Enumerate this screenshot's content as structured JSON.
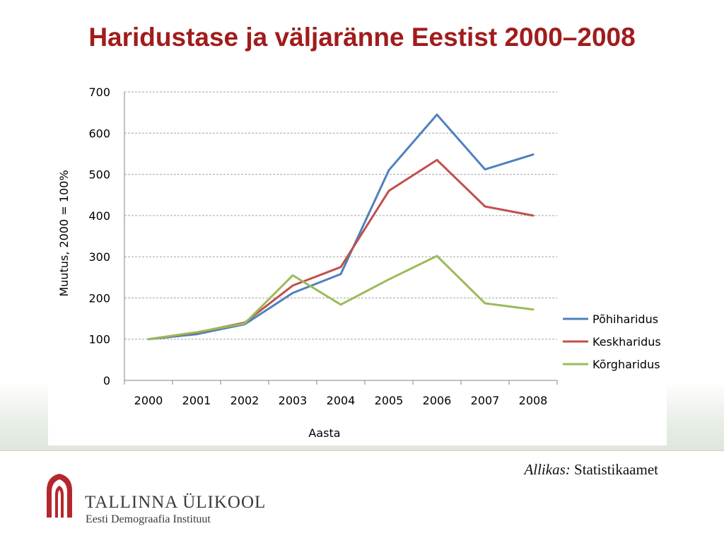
{
  "title": "Haridustase ja väljaränne Eestist 2000–2008",
  "source": {
    "label": "Allikas:",
    "value": "Statistikaamet"
  },
  "logo": {
    "name": "TALLINNA ÜLIKOOL",
    "subtitle": "Eesti Demograafia Instituut"
  },
  "chart_data": {
    "type": "line",
    "xlabel": "Aasta",
    "ylabel": "Muutus, 2000 = 100%",
    "categories": [
      "2000",
      "2001",
      "2002",
      "2003",
      "2004",
      "2005",
      "2006",
      "2007",
      "2008"
    ],
    "ylim": [
      0,
      700
    ],
    "yticks": [
      0,
      100,
      200,
      300,
      400,
      500,
      600,
      700
    ],
    "grid": true,
    "legend": "right",
    "series": [
      {
        "name": "Põhiharidus",
        "color": "#4f81bd",
        "values": [
          100,
          112,
          136,
          212,
          258,
          510,
          645,
          512,
          548
        ]
      },
      {
        "name": "Keskharidus",
        "color": "#c0504d",
        "values": [
          100,
          116,
          140,
          230,
          275,
          460,
          535,
          422,
          400
        ]
      },
      {
        "name": "Kõrgharidus",
        "color": "#9bbb59",
        "values": [
          100,
          117,
          138,
          255,
          184,
          245,
          302,
          187,
          172
        ]
      }
    ]
  }
}
